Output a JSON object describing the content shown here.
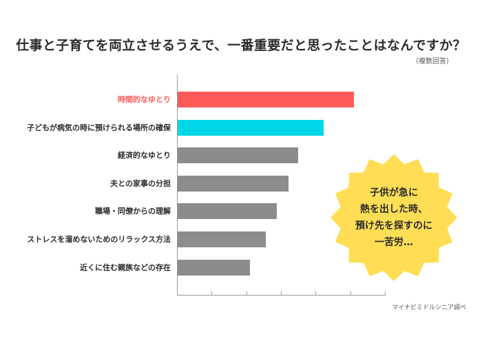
{
  "header": {
    "title": "仕事と子育てを両立させるうえで、一番重要だと思ったことはなんですか？",
    "subtitle": "（複数回答）"
  },
  "colors": {
    "highlight_red": "#FF5A5A",
    "highlight_cyan": "#00D7E6",
    "bar_gray": "#8C8C8C",
    "axis": "#9A9A9A",
    "burst_yellow": "#FFDE55"
  },
  "callout": {
    "lines": [
      "子供が急に",
      "熱を出した時、",
      "預け先を探すのに",
      "一苦労…"
    ]
  },
  "source": "マイナビミドルシニア調べ",
  "chart_data": {
    "type": "bar",
    "orientation": "horizontal",
    "title": "仕事と子育てを両立させるうえで、一番重要だと思ったことはなんですか？",
    "subtitle": "（複数回答）",
    "categories": [
      "時間的なゆとり",
      "子どもが病気の時に預けられる場所の確保",
      "経済的なゆとり",
      "夫との家事の分担",
      "職場・同僚からの理解",
      "ストレスを溜めないためのリラックス方法",
      "近くに住む親族などの存在"
    ],
    "values": [
      50.8,
      42.1,
      34.7,
      31.9,
      28.6,
      25.4,
      20.8
    ],
    "bar_colors": [
      "#FF5A5A",
      "#00D7E6",
      "#8C8C8C",
      "#8C8C8C",
      "#8C8C8C",
      "#8C8C8C",
      "#8C8C8C"
    ],
    "label_colors": [
      "#FF5A5A",
      "#2B2B2B",
      "#2B2B2B",
      "#2B2B2B",
      "#2B2B2B",
      "#2B2B2B",
      "#2B2B2B"
    ],
    "xlabel": "",
    "ylabel": "",
    "xlim": [
      0,
      60
    ],
    "tick_count": 6,
    "tick_labels_shown": false,
    "grid": false,
    "legend": null,
    "source": "マイナビミドルシニア調べ"
  }
}
